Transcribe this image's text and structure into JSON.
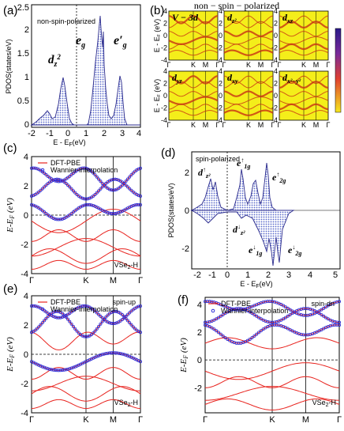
{
  "panels": {
    "a": {
      "label": "(a)",
      "note": "non-spin-polarized",
      "xlabel": "E - E",
      "xlabel_sub": "F",
      "xlabel_unit": "(eV)",
      "ylabel": "PDOS(states/eV)",
      "xticks": [
        "-2",
        "-1",
        "0",
        "1",
        "2",
        "3",
        "4"
      ],
      "yticks": [
        "0",
        "0.5",
        "1",
        "1.5",
        "2",
        "2.5"
      ],
      "peak_dz2": "d",
      "peak_dz2_sub": "z",
      "peak_dz2_sup": "2",
      "peak_eg": "e",
      "peak_eg_sub": "g",
      "peak_eprime": "e′",
      "peak_eprime_sub": "g"
    },
    "b": {
      "label": "(b)",
      "title": "non − spin − polarized",
      "subplots": [
        "V − 3d",
        "d",
        "d",
        "d",
        "d",
        "d"
      ],
      "subplot_subs": [
        "",
        "z²",
        "xz",
        "yz",
        "xy",
        "x²−y²"
      ],
      "ylabel": "E - E",
      "ylabel_sub": "F",
      "ylabel_unit": "(eV)",
      "xticks": [
        "Γ",
        "K",
        "M",
        "Γ"
      ],
      "yticks": [
        "4",
        "2",
        "0",
        "-2",
        "-4"
      ]
    },
    "c": {
      "label": "(c)",
      "legend": [
        "DFT-PBE",
        "Wannier-interpolation"
      ],
      "ylabel": "E-E",
      "ylabel_sub": "F",
      "ylabel_unit": "(eV)",
      "xticks": [
        "Γ",
        "K",
        "M",
        "Γ"
      ],
      "yticks": [
        "4",
        "2",
        "0",
        "-2",
        "-4"
      ],
      "tag": "VSe",
      "tag_sub": "2",
      "tag_suffix": "-H"
    },
    "d": {
      "label": "(d)",
      "note": "spin-polarized",
      "xlabel": "E - E",
      "xlabel_sub": "F",
      "xlabel_unit": "(eV)",
      "ylabel": "PDOS(states/eV)",
      "xticks": [
        "-2",
        "-1",
        "0",
        "1",
        "2",
        "3",
        "4",
        "5"
      ],
      "yticks": [
        "2",
        "0",
        "-2"
      ],
      "up_dz2": "d",
      "up_dz2_sup": "↑",
      "up_dz2_sub": "z²",
      "up_e1g": "e",
      "up_e1g_sup": "↑",
      "up_e1g_sub": "1g",
      "up_e2g": "e",
      "up_e2g_sup": "↑",
      "up_e2g_sub": "2g",
      "dn_dz2": "d",
      "dn_dz2_sup": "↓",
      "dn_dz2_sub": "z²",
      "dn_e1g": "e",
      "dn_e1g_sup": "↓",
      "dn_e1g_sub": "1g",
      "dn_e2g": "e",
      "dn_e2g_sup": "↓",
      "dn_e2g_sub": "2g"
    },
    "e": {
      "label": "(e)",
      "spin": "spin-up",
      "legend": [
        "DFT-PBE",
        "Wannier-interpolation"
      ],
      "ylabel": "E-E",
      "ylabel_sub": "F",
      "ylabel_unit": "(eV)",
      "xticks": [
        "Γ",
        "K",
        "M",
        "Γ"
      ],
      "yticks": [
        "4",
        "2",
        "0",
        "-2",
        "-4"
      ],
      "tag": "VSe",
      "tag_sub": "2",
      "tag_suffix": "-H"
    },
    "f": {
      "label": "(f)",
      "spin": "spin-dn",
      "legend": [
        "DFT-PBE",
        "Wannier-interpolation"
      ],
      "ylabel": "E-E",
      "ylabel_sub": "F",
      "ylabel_unit": "(eV)",
      "xticks": [
        "Γ",
        "K",
        "M",
        "Γ"
      ],
      "yticks": [
        "4",
        "2",
        "0",
        "-2"
      ],
      "tag": "VSe",
      "tag_sub": "2",
      "tag_suffix": "-H"
    }
  },
  "colors": {
    "dft": "#e8231e",
    "wannier": "#2a2ad8",
    "dos_fill": "#c8cdf0",
    "dos_line": "#2b2b8c",
    "fatband_bg": "#f4ee1a",
    "fatband_line": "#c83214"
  }
}
